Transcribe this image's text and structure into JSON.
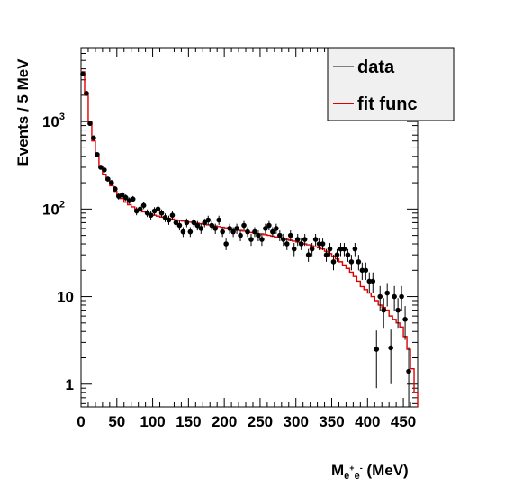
{
  "chart_data": {
    "type": "line",
    "xlabel": {
      "main": "M",
      "sub_a": "e",
      "sup_a": "+",
      "sub_b": "e",
      "sup_b": "-",
      "unit": " (MeV)"
    },
    "ylabel": "Events / 5 MeV",
    "xlim": [
      0,
      470
    ],
    "ylim": [
      0.55,
      7000
    ],
    "yscale": "log",
    "bin_width": 5,
    "x_ticks": [
      "0",
      "50",
      "100",
      "150",
      "200",
      "250",
      "300",
      "350",
      "400",
      "450"
    ],
    "y_ticks": [
      {
        "value": 1,
        "label": "1"
      },
      {
        "value": 10,
        "label": "10"
      },
      {
        "value": 100,
        "label": "10",
        "exponent": "2"
      },
      {
        "value": 1000,
        "label": "10",
        "exponent": "3"
      }
    ],
    "legend": {
      "position": "top-right",
      "entries": [
        {
          "name": "data",
          "color": "#808080"
        },
        {
          "name": "fit func",
          "color": "#e00000"
        }
      ]
    },
    "series": [
      {
        "name": "data",
        "kind": "points",
        "color": "#000000",
        "x": [
          2.5,
          7.5,
          12.5,
          17.5,
          22.5,
          27.5,
          32.5,
          37.5,
          42.5,
          47.5,
          52.5,
          57.5,
          62.5,
          67.5,
          72.5,
          77.5,
          82.5,
          87.5,
          92.5,
          97.5,
          102.5,
          107.5,
          112.5,
          117.5,
          122.5,
          127.5,
          132.5,
          137.5,
          142.5,
          147.5,
          152.5,
          157.5,
          162.5,
          167.5,
          172.5,
          177.5,
          182.5,
          187.5,
          192.5,
          197.5,
          202.5,
          207.5,
          212.5,
          217.5,
          222.5,
          227.5,
          232.5,
          237.5,
          242.5,
          247.5,
          252.5,
          257.5,
          262.5,
          267.5,
          272.5,
          277.5,
          282.5,
          287.5,
          292.5,
          297.5,
          302.5,
          307.5,
          312.5,
          317.5,
          322.5,
          327.5,
          332.5,
          337.5,
          342.5,
          347.5,
          352.5,
          357.5,
          362.5,
          367.5,
          372.5,
          377.5,
          382.5,
          387.5,
          392.5,
          397.5,
          402.5,
          407.5,
          412.5,
          417.5,
          422.5,
          427.5,
          432.5,
          437.5,
          442.5,
          447.5,
          452.5,
          457.5
        ],
        "y": [
          3500,
          2100,
          950,
          650,
          420,
          300,
          280,
          220,
          200,
          170,
          140,
          145,
          135,
          125,
          130,
          95,
          100,
          110,
          90,
          85,
          95,
          100,
          90,
          80,
          75,
          85,
          70,
          65,
          55,
          70,
          55,
          70,
          65,
          60,
          70,
          75,
          65,
          60,
          75,
          55,
          40,
          60,
          55,
          60,
          50,
          65,
          55,
          45,
          55,
          50,
          45,
          60,
          65,
          55,
          60,
          50,
          45,
          40,
          50,
          35,
          45,
          40,
          45,
          30,
          35,
          45,
          40,
          40,
          30,
          35,
          25,
          30,
          35,
          35,
          30,
          25,
          35,
          25,
          20,
          20,
          15,
          15,
          2.5,
          10,
          7,
          11,
          2.6,
          10,
          7,
          10,
          5.5,
          1.4
        ],
        "yerr": [
          60,
          45,
          30,
          25,
          20,
          17,
          17,
          15,
          14,
          13,
          12,
          12,
          12,
          11,
          11,
          10,
          10,
          10,
          9,
          9,
          10,
          10,
          9,
          9,
          9,
          9,
          8,
          8,
          7,
          8,
          7,
          8,
          8,
          8,
          8,
          9,
          8,
          8,
          9,
          7,
          6,
          8,
          7,
          8,
          7,
          8,
          7,
          7,
          7,
          7,
          7,
          8,
          8,
          7,
          8,
          7,
          7,
          6,
          7,
          6,
          7,
          6,
          7,
          5,
          6,
          7,
          6,
          6,
          5,
          6,
          5,
          5,
          6,
          6,
          5,
          5,
          6,
          5,
          4.5,
          4.5,
          3.9,
          3.9,
          1.6,
          3.2,
          2.6,
          3.3,
          1.6,
          3.2,
          2.6,
          3.2,
          2.3,
          1.2
        ]
      },
      {
        "name": "fit func",
        "kind": "step",
        "color": "#e00000",
        "x": [
          2.5,
          7.5,
          12.5,
          17.5,
          22.5,
          27.5,
          32.5,
          37.5,
          42.5,
          47.5,
          52.5,
          57.5,
          62.5,
          67.5,
          72.5,
          77.5,
          82.5,
          87.5,
          92.5,
          97.5,
          102.5,
          107.5,
          112.5,
          117.5,
          122.5,
          127.5,
          132.5,
          137.5,
          142.5,
          147.5,
          152.5,
          157.5,
          162.5,
          167.5,
          172.5,
          177.5,
          182.5,
          187.5,
          192.5,
          197.5,
          202.5,
          207.5,
          212.5,
          217.5,
          222.5,
          227.5,
          232.5,
          237.5,
          242.5,
          247.5,
          252.5,
          257.5,
          262.5,
          267.5,
          272.5,
          277.5,
          282.5,
          287.5,
          292.5,
          297.5,
          302.5,
          307.5,
          312.5,
          317.5,
          322.5,
          327.5,
          332.5,
          337.5,
          342.5,
          347.5,
          352.5,
          357.5,
          362.5,
          367.5,
          372.5,
          377.5,
          382.5,
          387.5,
          392.5,
          397.5,
          402.5,
          407.5,
          412.5,
          417.5,
          422.5,
          427.5,
          432.5,
          437.5,
          442.5,
          447.5,
          452.5,
          457.5,
          462.5,
          467.5
        ],
        "y": [
          3700,
          2000,
          1000,
          600,
          400,
          310,
          250,
          215,
          185,
          160,
          145,
          132,
          120,
          112,
          106,
          100,
          97,
          93,
          90,
          88,
          85,
          83,
          81,
          80,
          78,
          77,
          75,
          74,
          73,
          72,
          71,
          70,
          69,
          68,
          67,
          66,
          65,
          64,
          63,
          62,
          61,
          60,
          59,
          58,
          57,
          56,
          55,
          54,
          53,
          52,
          52,
          51,
          50,
          49,
          48,
          47,
          46,
          45,
          44,
          43,
          42,
          41,
          40,
          39,
          38,
          37,
          36,
          35,
          33,
          31,
          29,
          27,
          25,
          23,
          21,
          19,
          17,
          15,
          13,
          12,
          11,
          10,
          9,
          8,
          7.5,
          7,
          6,
          5.5,
          5,
          4.5,
          3.5,
          2.5,
          1.5,
          0.8
        ]
      }
    ]
  }
}
